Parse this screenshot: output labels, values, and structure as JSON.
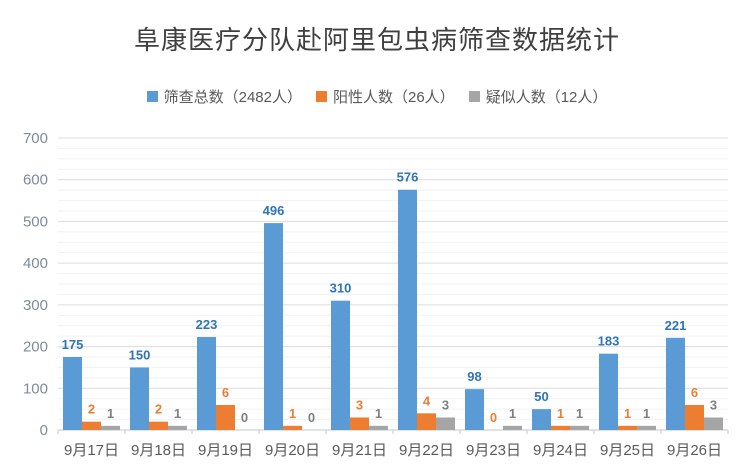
{
  "chart_data": {
    "type": "bar",
    "title": "阜康医疗分队赴阿里包虫病筛查数据统计",
    "categories": [
      "9月17日",
      "9月18日",
      "9月19日",
      "9月20日",
      "9月21日",
      "9月22日",
      "9月23日",
      "9月24日",
      "9月25日",
      "9月26日"
    ],
    "series": [
      {
        "name": "筛查总数（2482人）",
        "color": "#5B9BD5",
        "label_color": "#2E75B6",
        "axis": "primary",
        "values": [
          175,
          150,
          223,
          496,
          310,
          576,
          98,
          50,
          183,
          221
        ]
      },
      {
        "name": "阳性人数（26人）",
        "color": "#ED7D31",
        "label_color": "#ED7D31",
        "axis": "secondary",
        "values": [
          2,
          2,
          6,
          1,
          3,
          4,
          0,
          1,
          1,
          6
        ]
      },
      {
        "name": "疑似人数（12人）",
        "color": "#A5A5A5",
        "label_color": "#7F7F7F",
        "axis": "secondary",
        "values": [
          1,
          1,
          0,
          0,
          1,
          3,
          1,
          1,
          1,
          3
        ]
      }
    ],
    "ylim": [
      0,
      700
    ],
    "y_tick_labels": [
      "0",
      "100",
      "200",
      "300",
      "400",
      "500",
      "600",
      "700"
    ],
    "y_major_step": 100,
    "y_minor_step": 25,
    "secondary_scale_factor": 10,
    "grid": true,
    "data_labels": true,
    "legend_position": "top",
    "xlabel": "",
    "ylabel": ""
  },
  "style_colors": {
    "major_gridline": "#d9dce1",
    "minor_gridline": "#f0f1f3",
    "axis_line": "#c3c9cf",
    "title_color": "#3f3f3f",
    "y_label_color": "#7f8b99",
    "x_label_color": "#595959"
  }
}
